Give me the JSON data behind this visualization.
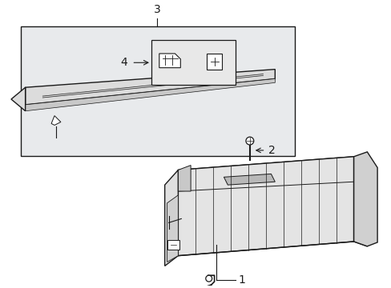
{
  "background_color": "#ffffff",
  "line_color": "#1a1a1a",
  "box_fill": "#e8eaec",
  "shelf_fill": "#dcdcdc",
  "bin_top_fill": "#d8d8d8",
  "bin_side_fill": "#e4e4e4",
  "bin_front_fill": "#ececec",
  "bin_right_fill": "#c8c8c8"
}
